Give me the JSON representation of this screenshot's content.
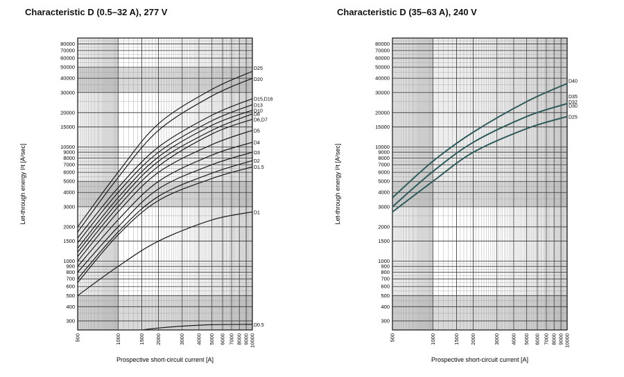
{
  "chart_data": [
    {
      "type": "line",
      "title": "Characteristic D (0.5–32 A), 277 V",
      "xlabel": "Prospective short-circuit current [A]",
      "ylabel": "Let-through energy I²t [A²sec]",
      "x_scale": "log",
      "y_scale": "log",
      "xlim": [
        500,
        10000
      ],
      "ylim": [
        250,
        90000
      ],
      "x_ticks": [
        500,
        1000,
        1500,
        2000,
        3000,
        4000,
        5000,
        6000,
        7000,
        8000,
        9000,
        10000
      ],
      "y_ticks": [
        300,
        400,
        500,
        600,
        700,
        800,
        900,
        1000,
        1500,
        2000,
        3000,
        4000,
        5000,
        6000,
        7000,
        8000,
        9000,
        10000,
        15000,
        20000,
        30000,
        40000,
        50000,
        60000,
        70000,
        80000
      ],
      "line_color": "#1a1a1a",
      "series": [
        {
          "name": "D25",
          "x": [
            500,
            1000,
            2000,
            5000,
            10000
          ],
          "y": [
            2000,
            6000,
            16000,
            32000,
            46000
          ]
        },
        {
          "name": "D20",
          "x": [
            500,
            1000,
            2000,
            5000,
            10000
          ],
          "y": [
            1800,
            5400,
            14000,
            28000,
            40000
          ]
        },
        {
          "name": "D15,D16",
          "x": [
            500,
            1000,
            2000,
            5000,
            10000
          ],
          "y": [
            1600,
            4400,
            10000,
            19000,
            26500
          ]
        },
        {
          "name": "D13",
          "x": [
            500,
            1000,
            2000,
            5000,
            10000
          ],
          "y": [
            1450,
            4000,
            9000,
            17000,
            23500
          ]
        },
        {
          "name": "D10",
          "x": [
            500,
            1000,
            2000,
            5000,
            10000
          ],
          "y": [
            1300,
            3600,
            8200,
            15500,
            21000
          ]
        },
        {
          "name": "D8",
          "x": [
            500,
            1000,
            2000,
            5000,
            10000
          ],
          "y": [
            1200,
            3300,
            7500,
            14000,
            19500
          ]
        },
        {
          "name": "D6,D7",
          "x": [
            500,
            1000,
            2000,
            5000,
            10000
          ],
          "y": [
            1100,
            3000,
            6800,
            13000,
            17500
          ]
        },
        {
          "name": "D5",
          "x": [
            500,
            1000,
            2000,
            5000,
            10000
          ],
          "y": [
            1000,
            2700,
            6000,
            10500,
            14000
          ]
        },
        {
          "name": "D4",
          "x": [
            500,
            1000,
            2000,
            5000,
            10000
          ],
          "y": [
            900,
            2300,
            5000,
            8500,
            11000
          ]
        },
        {
          "name": "D3",
          "x": [
            500,
            1000,
            2000,
            5000,
            10000
          ],
          "y": [
            800,
            2000,
            4300,
            7000,
            9000
          ]
        },
        {
          "name": "D2",
          "x": [
            500,
            1000,
            2000,
            5000,
            10000
          ],
          "y": [
            700,
            1800,
            3700,
            5900,
            7600
          ]
        },
        {
          "name": "D1.5",
          "x": [
            500,
            1000,
            2000,
            5000,
            10000
          ],
          "y": [
            650,
            1700,
            3400,
            5300,
            6700
          ]
        },
        {
          "name": "D1",
          "x": [
            500,
            1000,
            2000,
            5000,
            10000
          ],
          "y": [
            500,
            900,
            1500,
            2300,
            2700
          ]
        },
        {
          "name": "D0.5",
          "x": [
            1500,
            2000,
            3000,
            5000,
            10000
          ],
          "y": [
            250,
            260,
            270,
            278,
            280
          ]
        }
      ]
    },
    {
      "type": "line",
      "title": "Characteristic D (35–63 A), 240 V",
      "xlabel": "Prospective short-circuit current [A]",
      "ylabel": "Let-through energy I²t [A²sec]",
      "x_scale": "log",
      "y_scale": "log",
      "xlim": [
        500,
        10000
      ],
      "ylim": [
        250,
        90000
      ],
      "x_ticks": [
        500,
        1000,
        1500,
        2000,
        3000,
        4000,
        5000,
        6000,
        7000,
        8000,
        9000,
        10000
      ],
      "y_ticks": [
        300,
        400,
        500,
        600,
        700,
        800,
        900,
        1000,
        1500,
        2000,
        3000,
        4000,
        5000,
        6000,
        7000,
        8000,
        9000,
        10000,
        15000,
        20000,
        30000,
        40000,
        50000,
        60000,
        70000,
        80000
      ],
      "line_color": "#2f5a5a",
      "series": [
        {
          "name": "D40",
          "x": [
            500,
            1000,
            2000,
            5000,
            10000
          ],
          "y": [
            3600,
            7500,
            13500,
            25000,
            36000
          ]
        },
        {
          "name": "D35",
          "x": [
            500,
            1000,
            2000,
            5000,
            10000
          ],
          "y": [
            3100,
            6300,
            11500,
            19500,
            26000
          ]
        },
        {
          "name": "D32",
          "x": [
            500,
            1000,
            2000,
            5000,
            10000
          ],
          "y": [
            3050,
            6200,
            11300,
            19000,
            25000
          ]
        },
        {
          "name": "D30",
          "x": [
            500,
            1000,
            2000,
            5000,
            10000
          ],
          "y": [
            3000,
            6100,
            11000,
            18500,
            24000
          ]
        },
        {
          "name": "D25",
          "x": [
            500,
            1000,
            2000,
            5000,
            10000
          ],
          "y": [
            2700,
            5000,
            9000,
            14500,
            18500
          ]
        }
      ],
      "labeled_series": [
        "D40",
        "D35",
        "D32",
        "D30",
        "D25"
      ],
      "drawn_series": [
        "D40",
        "D30",
        "D25"
      ]
    }
  ]
}
